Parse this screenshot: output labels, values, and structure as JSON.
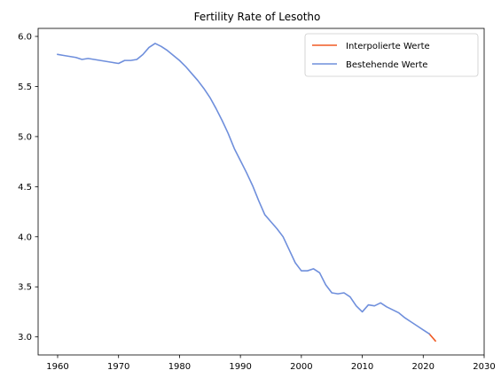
{
  "chart_data": {
    "type": "line",
    "title": "Fertility Rate of Lesotho",
    "xlabel": "",
    "ylabel": "",
    "xlim": [
      1956.8,
      2030
    ],
    "ylim": [
      2.82,
      6.08
    ],
    "xticks": [
      1960,
      1970,
      1980,
      1990,
      2000,
      2010,
      2020,
      2030
    ],
    "yticks": [
      3.0,
      3.5,
      4.0,
      4.5,
      5.0,
      5.5,
      6.0
    ],
    "ytick_labels": [
      "3.0",
      "3.5",
      "4.0",
      "4.5",
      "5.0",
      "5.5",
      "6.0"
    ],
    "grid": false,
    "legend_position": "top-right",
    "series": [
      {
        "name": "Interpolierte Werte",
        "color": "#f05a23",
        "x": [
          2021,
          2022
        ],
        "y": [
          3.03,
          2.96
        ]
      },
      {
        "name": "Bestehende Werte",
        "color": "#6f8fdc",
        "x": [
          1960,
          1961,
          1962,
          1963,
          1964,
          1965,
          1966,
          1967,
          1968,
          1969,
          1970,
          1971,
          1972,
          1973,
          1974,
          1975,
          1976,
          1977,
          1978,
          1979,
          1980,
          1981,
          1982,
          1983,
          1984,
          1985,
          1986,
          1987,
          1988,
          1989,
          1990,
          1991,
          1992,
          1993,
          1994,
          1995,
          1996,
          1997,
          1998,
          1999,
          2000,
          2001,
          2002,
          2003,
          2004,
          2005,
          2006,
          2007,
          2008,
          2009,
          2010,
          2011,
          2012,
          2013,
          2014,
          2015,
          2016,
          2017,
          2018,
          2019,
          2020,
          2021
        ],
        "y": [
          5.82,
          5.81,
          5.8,
          5.79,
          5.77,
          5.78,
          5.77,
          5.76,
          5.75,
          5.74,
          5.73,
          5.76,
          5.76,
          5.77,
          5.82,
          5.89,
          5.93,
          5.9,
          5.86,
          5.81,
          5.76,
          5.7,
          5.63,
          5.56,
          5.48,
          5.39,
          5.28,
          5.16,
          5.03,
          4.88,
          4.76,
          4.64,
          4.51,
          4.36,
          4.22,
          4.15,
          4.08,
          4.0,
          3.87,
          3.74,
          3.66,
          3.66,
          3.68,
          3.64,
          3.52,
          3.44,
          3.43,
          3.44,
          3.4,
          3.31,
          3.25,
          3.32,
          3.31,
          3.34,
          3.3,
          3.27,
          3.24,
          3.19,
          3.15,
          3.11,
          3.07,
          3.03
        ]
      }
    ]
  }
}
